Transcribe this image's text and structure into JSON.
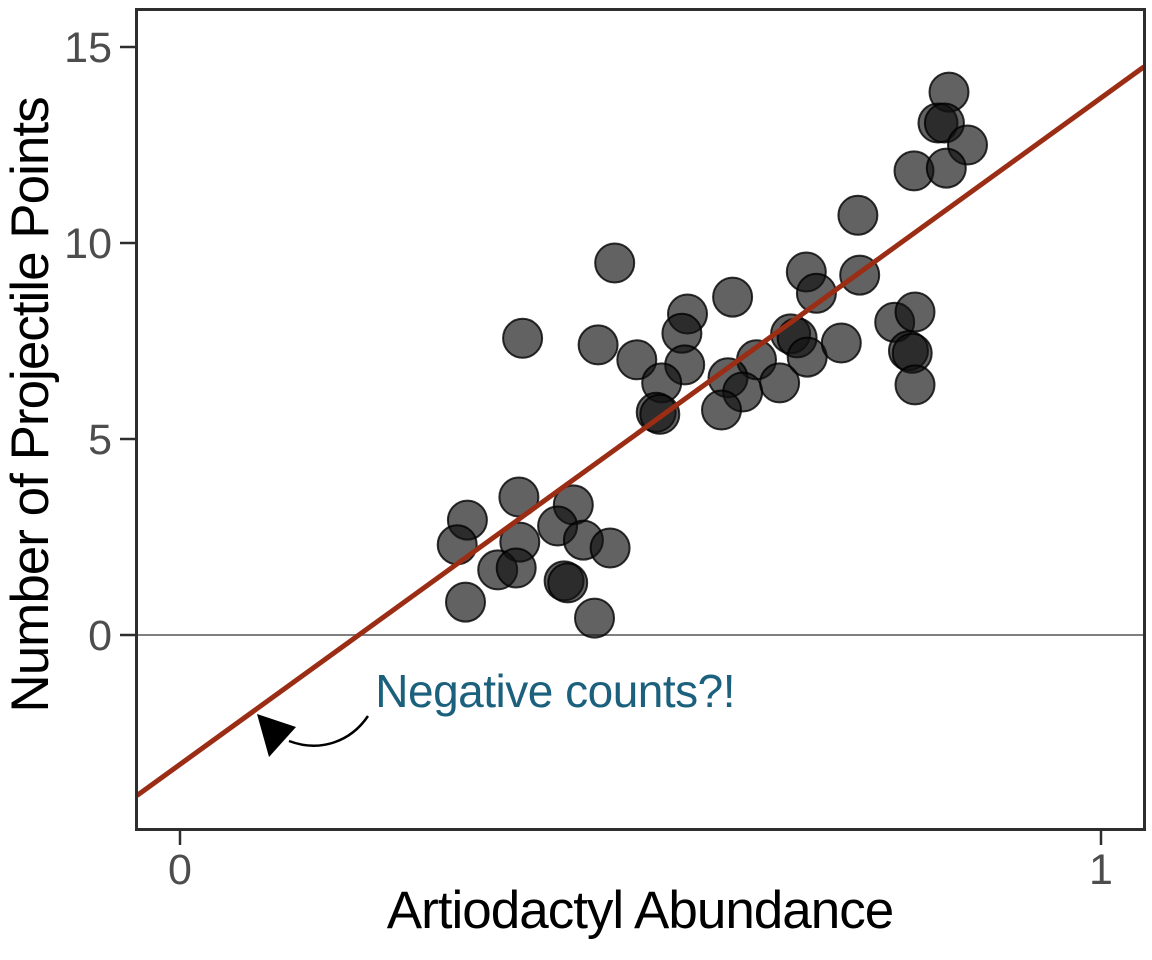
{
  "chart_data": {
    "type": "scatter",
    "title": "",
    "xlabel": "Artiodactyl Abundance",
    "ylabel": "Number of Projectile Points",
    "xlim": [
      -0.047,
      1.048
    ],
    "ylim": [
      -4.9,
      16.0
    ],
    "grid": false,
    "legend": "none",
    "x_ticks": [
      {
        "value": 0,
        "label": "0"
      },
      {
        "value": 1,
        "label": "1"
      }
    ],
    "y_ticks": [
      {
        "value": 0,
        "label": "0"
      },
      {
        "value": 5,
        "label": "5"
      },
      {
        "value": 10,
        "label": "10"
      },
      {
        "value": 15,
        "label": "15"
      }
    ],
    "zero_reference_line": {
      "y": 0,
      "color": "#7f7f7f"
    },
    "points": [
      [
        0.368,
        3.52
      ],
      [
        0.427,
        3.32
      ],
      [
        0.312,
        2.93
      ],
      [
        0.41,
        2.78
      ],
      [
        0.301,
        2.3
      ],
      [
        0.369,
        2.37
      ],
      [
        0.438,
        2.42
      ],
      [
        0.467,
        2.22
      ],
      [
        0.345,
        1.66
      ],
      [
        0.365,
        1.71
      ],
      [
        0.417,
        1.38
      ],
      [
        0.421,
        1.33
      ],
      [
        0.31,
        0.84
      ],
      [
        0.45,
        0.43
      ],
      [
        0.372,
        7.57
      ],
      [
        0.472,
        9.49
      ],
      [
        0.6,
        8.62
      ],
      [
        0.551,
        8.19
      ],
      [
        0.545,
        7.7
      ],
      [
        0.454,
        7.4
      ],
      [
        0.496,
        7.02
      ],
      [
        0.548,
        6.89
      ],
      [
        0.626,
        7.02
      ],
      [
        0.663,
        7.68
      ],
      [
        0.67,
        7.58
      ],
      [
        0.681,
        7.09
      ],
      [
        0.718,
        7.45
      ],
      [
        0.595,
        6.56
      ],
      [
        0.611,
        6.2
      ],
      [
        0.651,
        6.43
      ],
      [
        0.523,
        6.43
      ],
      [
        0.588,
        5.74
      ],
      [
        0.517,
        5.68
      ],
      [
        0.521,
        5.63
      ],
      [
        0.835,
        13.85
      ],
      [
        0.823,
        13.06
      ],
      [
        0.83,
        13.06
      ],
      [
        0.855,
        12.5
      ],
      [
        0.797,
        11.84
      ],
      [
        0.832,
        11.91
      ],
      [
        0.736,
        10.71
      ],
      [
        0.68,
        9.26
      ],
      [
        0.738,
        9.18
      ],
      [
        0.691,
        8.72
      ],
      [
        0.776,
        7.98
      ],
      [
        0.798,
        8.24
      ],
      [
        0.791,
        7.25
      ],
      [
        0.795,
        7.19
      ],
      [
        0.798,
        6.38
      ]
    ],
    "point_style": {
      "fill": "#111111",
      "fill_opacity": 0.66,
      "stroke": "#000000",
      "stroke_opacity": 0.8
    },
    "trend_line": {
      "type": "linear",
      "slope": 17.0,
      "intercept": -3.3,
      "color": "#9b2d14"
    },
    "annotation": {
      "text": "Negative counts?!",
      "color": "#1b607c",
      "text_x": 0.212,
      "text_y": -1.84,
      "arrow_tail": {
        "x": 0.204,
        "y": -2.07
      },
      "arrow_tip": {
        "x": 0.087,
        "y": -2.07
      }
    },
    "panel_border_color": "#2e2e2e",
    "tick_label_color": "#4d4d4d"
  }
}
